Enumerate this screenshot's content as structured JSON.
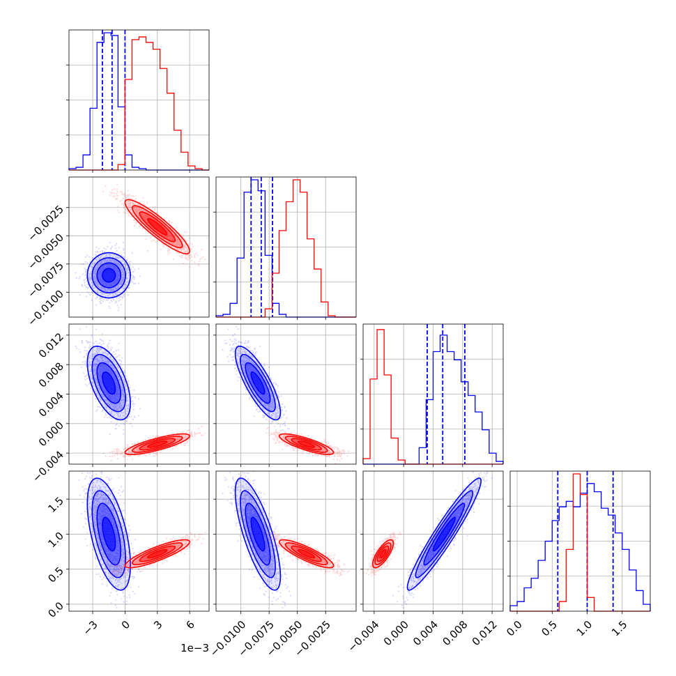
{
  "chart_data": {
    "type": "corner",
    "title": "",
    "parameters": [
      {
        "range": [
          -5.2,
          7.8
        ],
        "ticks": [
          -3,
          0,
          3,
          6
        ],
        "tick_labels": [
          "−3",
          "0",
          "3",
          "6"
        ],
        "offset_text": "1e−3"
      },
      {
        "range": [
          -0.0122,
          0.0002
        ],
        "ticks": [
          -0.01,
          -0.0075,
          -0.005,
          -0.0025
        ],
        "tick_labels": [
          "−0.0100",
          "−0.0075",
          "−0.0050",
          "−0.0025"
        ],
        "offset_text": ""
      },
      {
        "range": [
          -0.0055,
          0.0135
        ],
        "ticks": [
          -0.004,
          0.0,
          0.004,
          0.008,
          0.012
        ],
        "tick_labels": [
          "−0.004",
          "0.000",
          "0.004",
          "0.008",
          "0.012"
        ],
        "offset_text": ""
      },
      {
        "range": [
          -0.1,
          1.9
        ],
        "ticks": [
          0.0,
          0.5,
          1.0,
          1.5
        ],
        "tick_labels": [
          "0.0",
          "0.5",
          "1.0",
          "1.5"
        ],
        "offset_text": ""
      }
    ],
    "grid": true,
    "series": [
      {
        "color": "#0000ff",
        "means": [
          -1.5,
          -0.0085,
          0.0055,
          1.0
        ],
        "sds": [
          1.0,
          0.001,
          0.0025,
          0.4
        ],
        "quantiles": [
          [
            -2.1,
            -1.2,
            0.0
          ],
          [
            -0.0091,
            -0.0082,
            -0.0072
          ],
          [
            0.0032,
            0.0053,
            0.0083
          ],
          [
            0.58,
            1.0,
            1.37
          ]
        ],
        "hist": [
          [
            0.01,
            0.02,
            0.11,
            0.45,
            0.93,
            1.0,
            0.98,
            0.46,
            0.11,
            0.02,
            0.01,
            0.0,
            0.0,
            0.0,
            0.0,
            0.0,
            0.0,
            0.0,
            0.0,
            0.0
          ],
          [
            0.01,
            0.02,
            0.1,
            0.43,
            0.91,
            1.0,
            0.92,
            0.45,
            0.1,
            0.02,
            0.0,
            0.0,
            0.0,
            0.0,
            0.0,
            0.0,
            0.0,
            0.0,
            0.0,
            0.0
          ],
          [
            0.0,
            0.0,
            0.0,
            0.0,
            0.0,
            0.0,
            0.0,
            0.0,
            0.12,
            0.47,
            0.82,
            0.94,
            0.82,
            0.76,
            0.6,
            0.5,
            0.38,
            0.25,
            0.08,
            0.02
          ],
          [
            0.04,
            0.07,
            0.17,
            0.24,
            0.37,
            0.51,
            0.66,
            0.76,
            0.8,
            0.76,
            0.86,
            0.93,
            0.87,
            0.75,
            0.7,
            0.57,
            0.45,
            0.3,
            0.15,
            0.05
          ]
        ],
        "corr": [
          [
            1.0,
            0.0,
            -0.55,
            -0.55
          ],
          [
            0.0,
            1.0,
            -0.8,
            -0.75
          ],
          [
            -0.55,
            -0.8,
            1.0,
            0.95
          ],
          [
            -0.55,
            -0.75,
            0.95,
            1.0
          ]
        ]
      },
      {
        "color": "#ff0000",
        "means": [
          3.0,
          -0.0042,
          -0.0028,
          0.72
        ],
        "sds": [
          1.5,
          0.0012,
          0.0007,
          0.1
        ],
        "hist": [
          [
            0.0,
            0.0,
            0.0,
            0.0,
            0.0,
            0.0,
            0.0,
            0.04,
            0.66,
            0.95,
            0.97,
            0.93,
            0.88,
            0.74,
            0.56,
            0.29,
            0.13,
            0.03,
            0.01,
            0.0
          ],
          [
            0.0,
            0.0,
            0.0,
            0.0,
            0.0,
            0.0,
            0.0,
            0.06,
            0.32,
            0.63,
            0.84,
            1.0,
            0.91,
            0.57,
            0.35,
            0.11,
            0.01,
            0.0,
            0.0,
            0.0
          ],
          [
            0.04,
            0.62,
            0.98,
            0.65,
            0.19,
            0.03,
            0.0,
            0.0,
            0.0,
            0.0,
            0.0,
            0.0,
            0.0,
            0.0,
            0.0,
            0.0,
            0.0,
            0.0,
            0.0,
            0.0
          ],
          [
            0.0,
            0.0,
            0.0,
            0.0,
            0.0,
            0.0,
            0.0,
            0.07,
            0.45,
            1.0,
            0.85,
            0.1,
            0.0,
            0.0,
            0.0,
            0.0,
            0.0,
            0.0,
            0.0,
            0.0
          ]
        ],
        "corr": [
          [
            1.0,
            -0.9,
            0.8,
            0.85
          ],
          [
            -0.9,
            1.0,
            -0.8,
            -0.85
          ],
          [
            0.8,
            -0.8,
            1.0,
            0.75
          ],
          [
            0.85,
            -0.85,
            0.75,
            1.0
          ]
        ]
      }
    ]
  }
}
